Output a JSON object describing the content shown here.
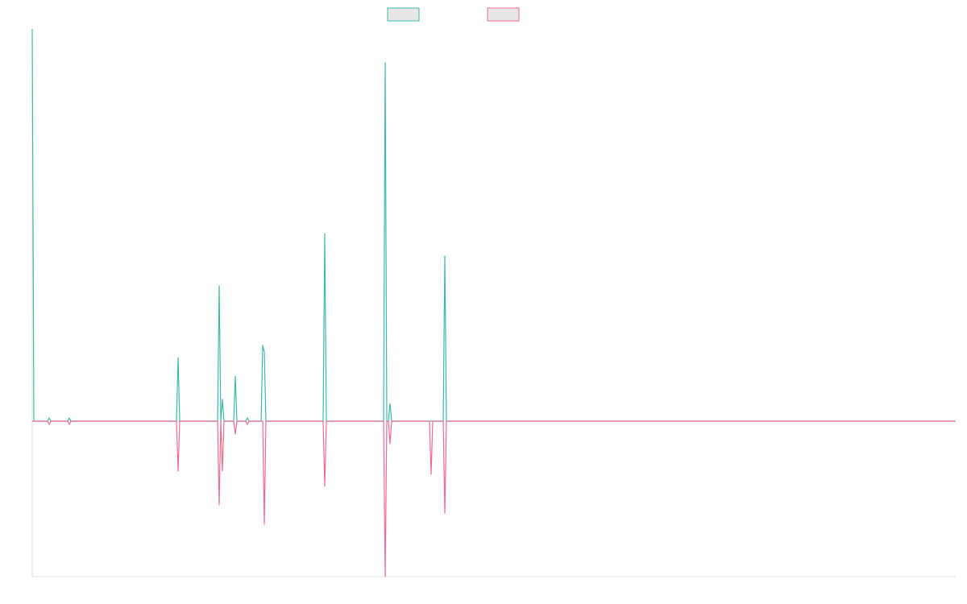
{
  "chart_data": {
    "type": "line",
    "x": [
      0,
      2,
      19,
      21,
      23,
      44,
      46,
      48,
      179,
      181,
      183,
      230,
      232,
      234,
      236,
      238,
      250,
      252,
      254,
      265,
      267,
      269,
      284,
      286,
      288,
      290,
      361,
      363,
      365,
      436,
      438,
      440,
      442,
      444,
      446,
      493,
      495,
      497,
      510,
      512,
      514,
      1146
    ],
    "series": [
      {
        "color": "#3bbcaa",
        "values": [
          487,
          0,
          0,
          4,
          0,
          0,
          4,
          0,
          0,
          79,
          0,
          0,
          168,
          0,
          27,
          0,
          0,
          56,
          0,
          0,
          4,
          0,
          0,
          94,
          86,
          0,
          0,
          233,
          0,
          0,
          445,
          0,
          0,
          22,
          0,
          0,
          0,
          0,
          0,
          205,
          0,
          0
        ]
      },
      {
        "color": "#f06b8e",
        "values": [
          0,
          0,
          0,
          -4,
          0,
          0,
          -4,
          0,
          0,
          -62,
          0,
          0,
          -104,
          0,
          -62,
          0,
          0,
          -16,
          0,
          0,
          -4,
          0,
          0,
          0,
          -128,
          0,
          0,
          -81,
          0,
          0,
          -193,
          0,
          0,
          -28,
          0,
          0,
          -66,
          0,
          0,
          -114,
          0,
          0
        ]
      }
    ],
    "xlim": [
      0,
      1146
    ],
    "ylim": [
      -193,
      487
    ]
  }
}
